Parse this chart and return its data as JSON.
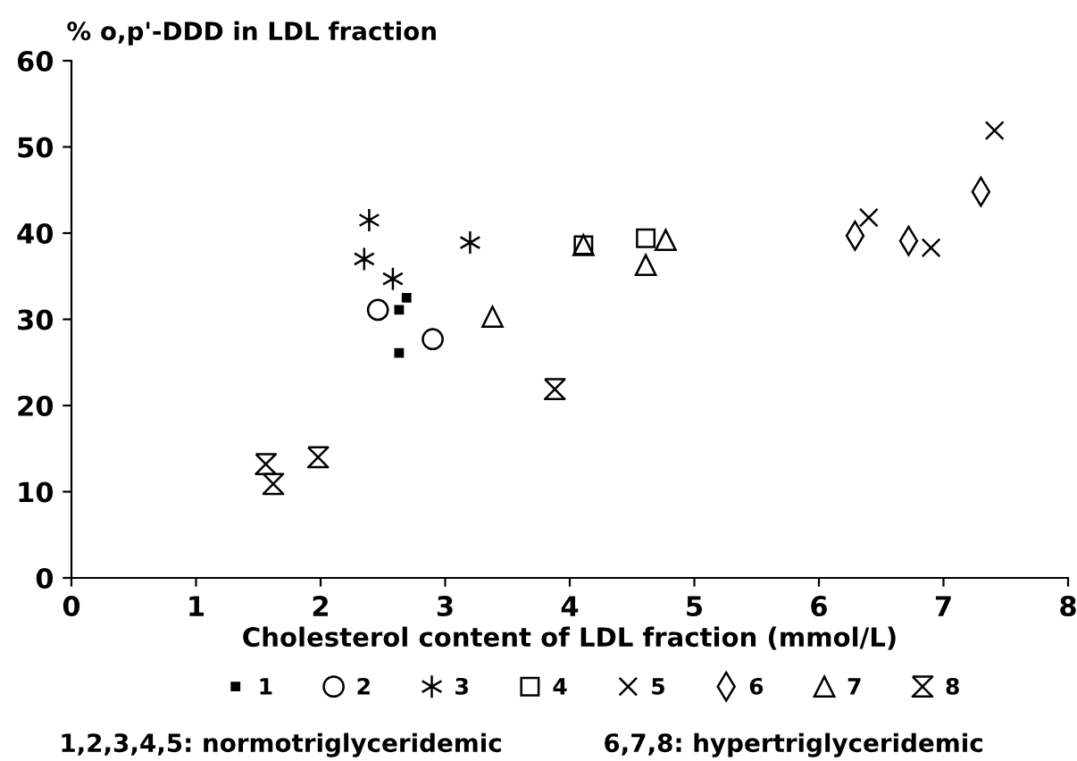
{
  "chart_data": {
    "type": "scatter",
    "ylabel": "% o,p'-DDD in LDL fraction",
    "xlabel": "Cholesterol content of LDL fraction (mmol/L)",
    "xlim": [
      0,
      8
    ],
    "xticks": [
      0,
      1,
      2,
      3,
      4,
      5,
      6,
      7,
      8
    ],
    "ylim": [
      0,
      60
    ],
    "yticks": [
      0,
      10,
      20,
      30,
      40,
      50,
      60
    ],
    "grid": false,
    "legend": "bottom",
    "series": [
      {
        "name": "1",
        "color": "#000000",
        "x": [
          2.63,
          2.69,
          2.63
        ],
        "values": [
          31.1,
          32.5,
          26.1
        ]
      },
      {
        "name": "2",
        "color": "#000000",
        "marker": "circle",
        "x": [
          2.46,
          2.9
        ],
        "values": [
          31.1,
          27.7
        ]
      },
      {
        "name": "3",
        "color": "#000000",
        "marker": "cross",
        "x": [
          2.39,
          2.35,
          2.58,
          3.2
        ],
        "values": [
          41.5,
          37.0,
          34.7,
          38.9
        ]
      },
      {
        "name": "4",
        "color": "#000000",
        "marker": "square",
        "x": [
          4.11,
          4.61
        ],
        "values": [
          38.6,
          39.4
        ]
      },
      {
        "name": "5",
        "color": "#000000",
        "marker": "cross",
        "x": [
          6.4,
          6.9,
          7.41
        ],
        "values": [
          41.8,
          38.3,
          51.9
        ]
      },
      {
        "name": "6",
        "color": "#000000",
        "marker": "diamond",
        "x": [
          6.29,
          6.72,
          7.3
        ],
        "values": [
          39.7,
          39.1,
          44.8
        ]
      },
      {
        "name": "7",
        "color": "#000000",
        "marker": "triangle",
        "x": [
          3.38,
          4.11,
          4.61,
          4.77
        ],
        "values": [
          30.3,
          38.6,
          36.3,
          39.2
        ]
      },
      {
        "name": "8",
        "color": "#000000",
        "x": [
          1.56,
          1.62,
          1.98,
          3.88
        ],
        "values": [
          13.2,
          10.9,
          14.0,
          21.9
        ]
      }
    ],
    "annotations": [
      "1,2,3,4,5: normotriglyceridemic",
      "6,7,8: hypertriglyceridemic"
    ]
  }
}
